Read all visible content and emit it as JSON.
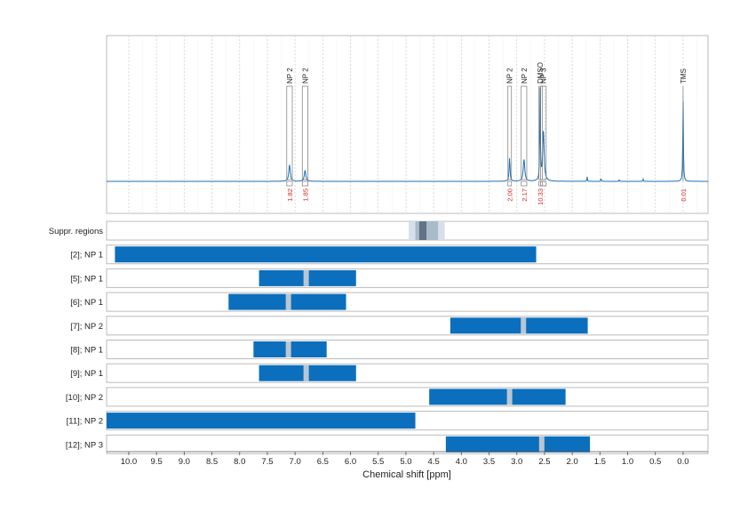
{
  "chart_data": {
    "type": "nmr-spectrum-with-range-bars",
    "xlabel": "Chemical shift [ppm]",
    "x_ticks": [
      "10.0",
      "9.5",
      "9.0",
      "8.5",
      "8.0",
      "7.5",
      "7.0",
      "6.5",
      "6.0",
      "5.5",
      "5.0",
      "4.5",
      "4.0",
      "3.5",
      "3.0",
      "2.5",
      "2.0",
      "1.5",
      "1.0",
      "0.5",
      "0.0"
    ],
    "xlim": [
      10.4,
      -0.45
    ],
    "x_reversed": true,
    "spectrum_color": "#1f6fb4",
    "bar_color": "#0b6fbd",
    "marker_color": "#b9c6d3",
    "peaks": [
      {
        "label": "NP 2",
        "center": 7.1,
        "width": 0.1,
        "intensity": 0.18,
        "integral": "1.82"
      },
      {
        "label": "NP 2",
        "center": 6.82,
        "width": 0.1,
        "intensity": 0.12,
        "integral": "1.85"
      },
      {
        "label": "NP 2",
        "center": 3.13,
        "width": 0.06,
        "intensity": 0.26,
        "integral": "2.00"
      },
      {
        "label": "NP 2",
        "center": 2.87,
        "width": 0.1,
        "intensity": 0.24,
        "integral": "2.17"
      },
      {
        "label": "DMSO",
        "center": 2.58,
        "width": 0.04,
        "intensity": 1.0,
        "integral": "10.33"
      },
      {
        "label": "NP 3",
        "center": 2.52,
        "width": 0.1,
        "intensity": 0.55,
        "integral": ""
      },
      {
        "label": "TMS",
        "center": 0.0,
        "width": 0.04,
        "intensity": 0.9,
        "integral": "0.01"
      }
    ],
    "minor_peaks": [
      {
        "center": 1.73,
        "intensity": 0.05
      },
      {
        "center": 1.48,
        "intensity": 0.03
      },
      {
        "center": 1.15,
        "intensity": 0.02
      },
      {
        "center": 0.72,
        "intensity": 0.025
      }
    ],
    "suppression": {
      "label": "Suppr. regions",
      "range": [
        4.95,
        4.3
      ],
      "core": [
        4.76,
        4.63
      ]
    },
    "rows": [
      {
        "label": "[2]; NP 1",
        "range": [
          10.25,
          2.65
        ],
        "marker": null
      },
      {
        "label": "[5]; NP 1",
        "range": [
          7.65,
          5.9
        ],
        "marker": 6.8
      },
      {
        "label": "[6]; NP 1",
        "range": [
          8.2,
          6.08
        ],
        "marker": 7.12
      },
      {
        "label": "[7]; NP 2",
        "range": [
          4.2,
          1.72
        ],
        "marker": 2.88
      },
      {
        "label": "[8]; NP 1",
        "range": [
          7.75,
          6.43
        ],
        "marker": 7.12
      },
      {
        "label": "[9]; NP 1",
        "range": [
          7.65,
          5.9
        ],
        "marker": 6.8
      },
      {
        "label": "[10]; NP 2",
        "range": [
          4.58,
          2.12
        ],
        "marker": 3.13
      },
      {
        "label": "[11]; NP 2",
        "range": [
          10.4,
          4.83
        ],
        "marker": null
      },
      {
        "label": "[12]; NP 3",
        "range": [
          4.28,
          1.68
        ],
        "marker": 2.55
      }
    ]
  }
}
